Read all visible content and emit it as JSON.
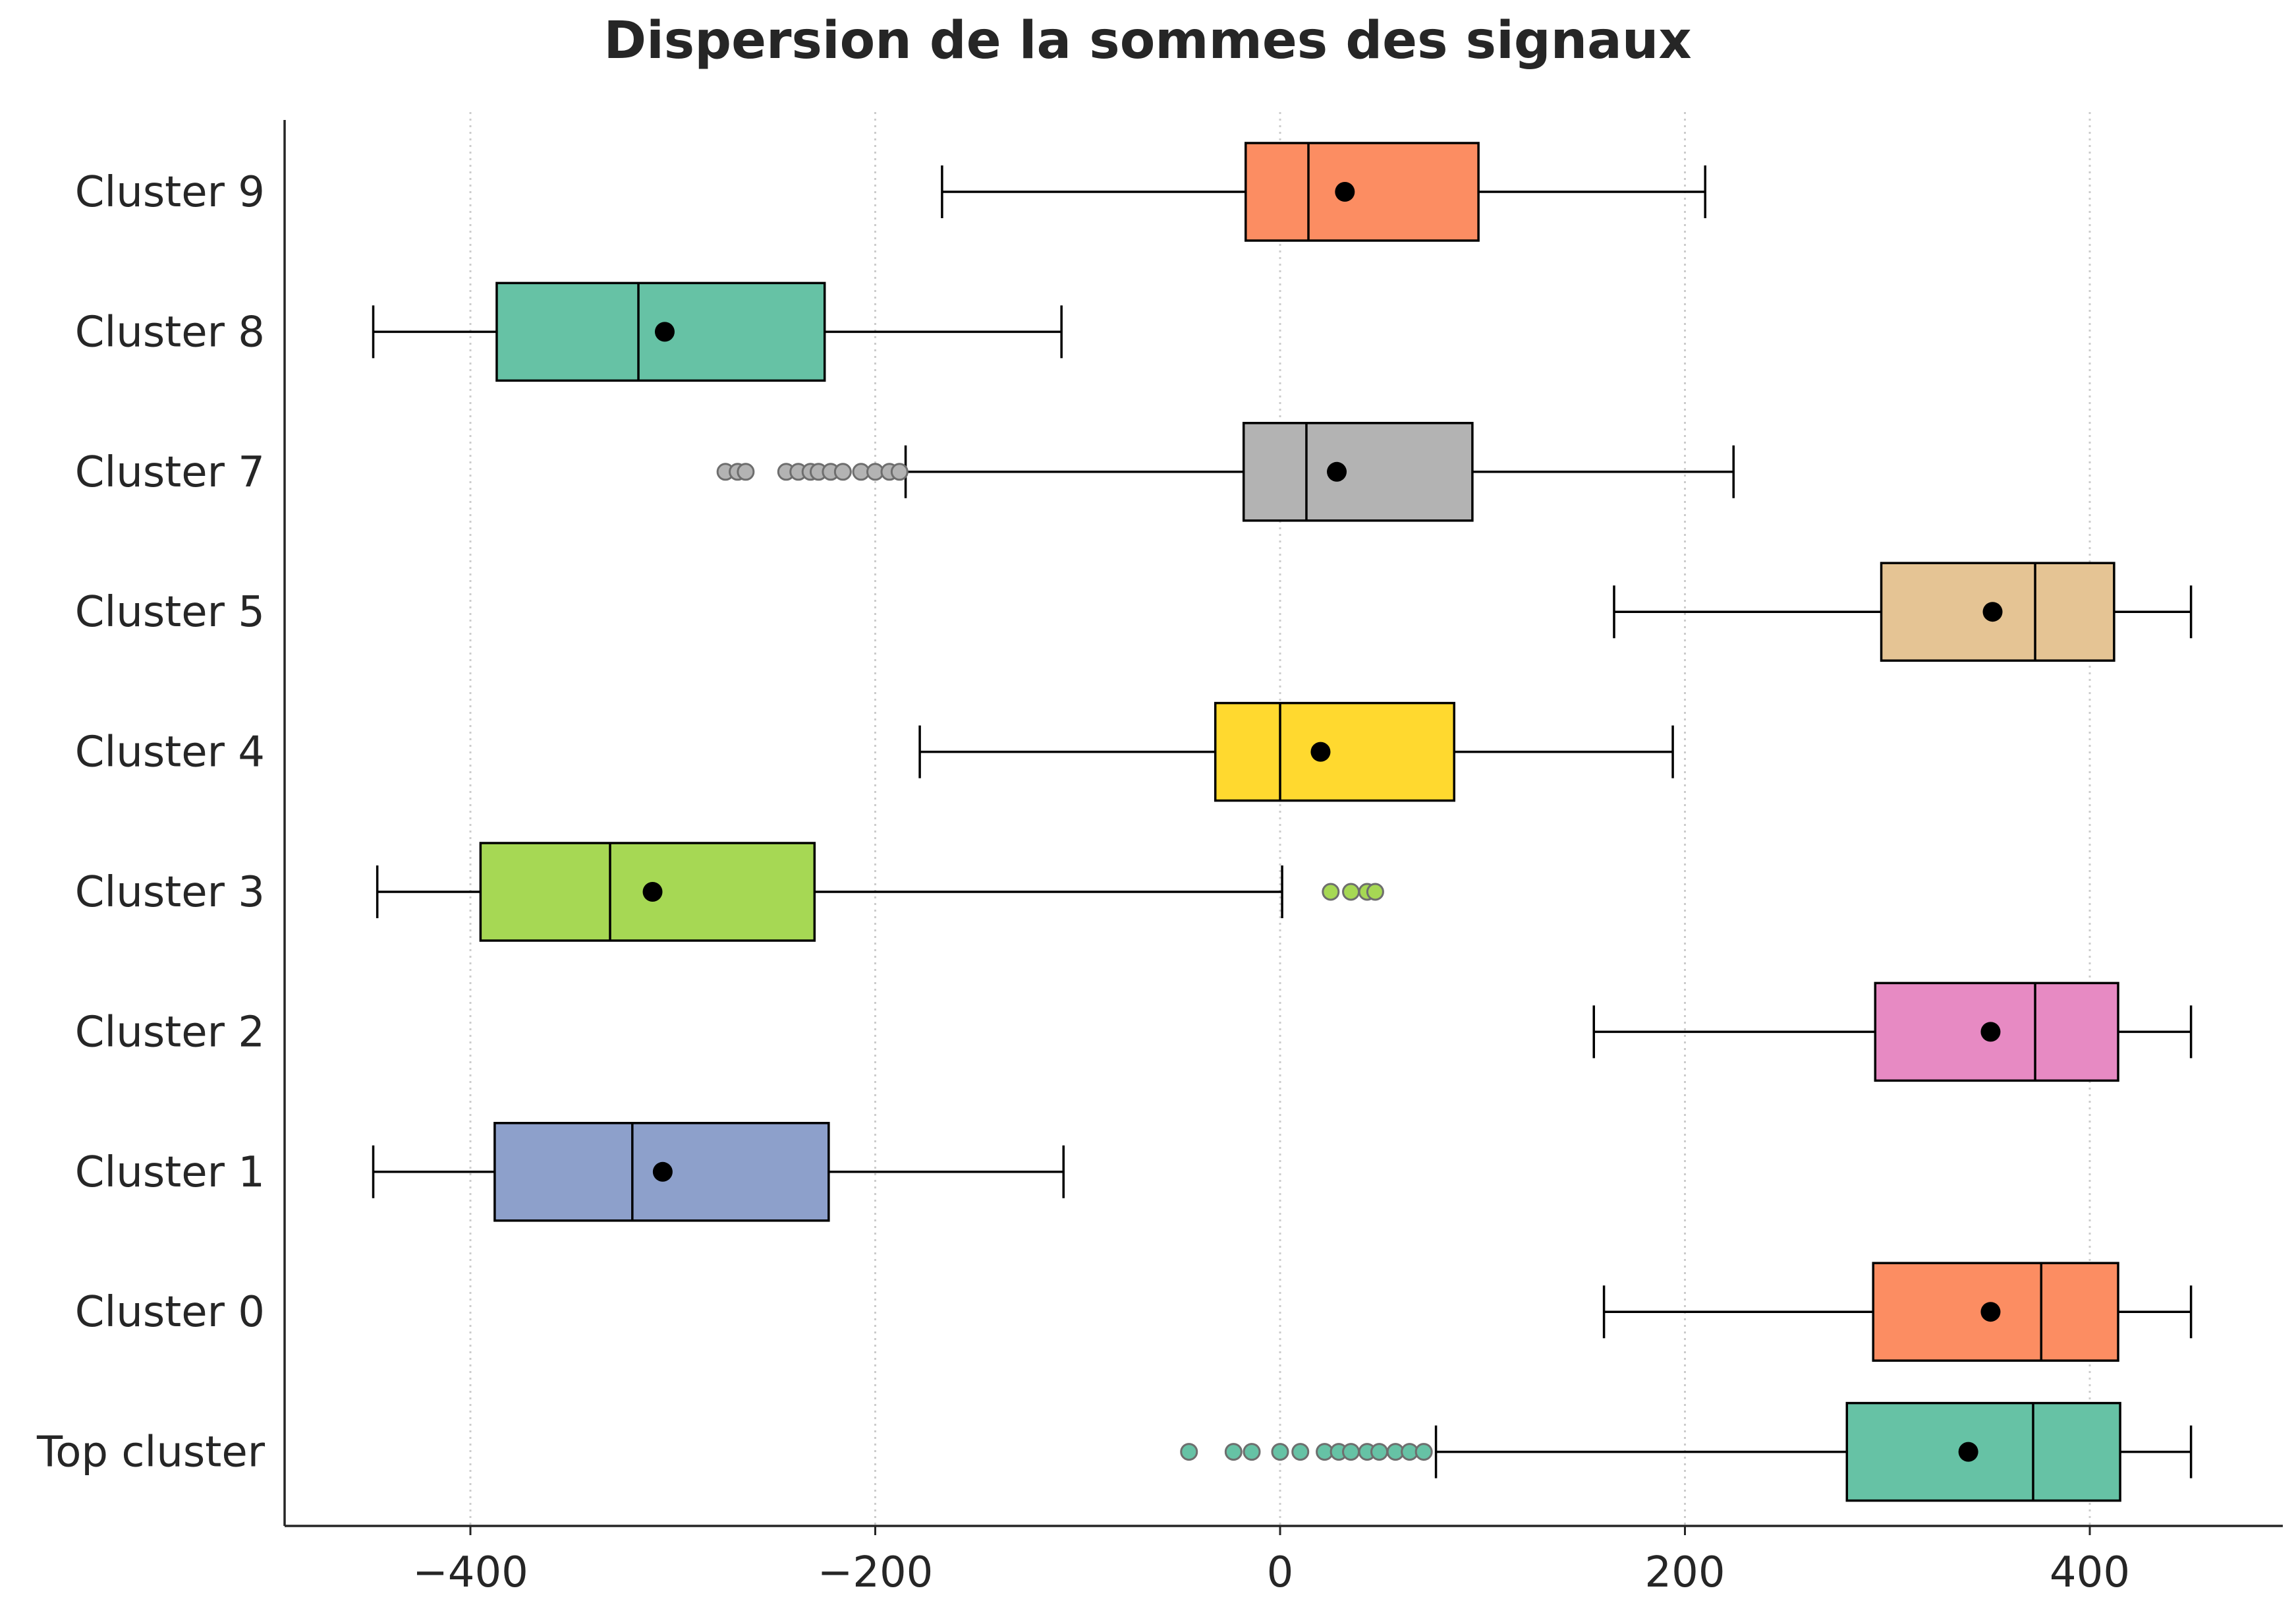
{
  "chart_data": {
    "type": "boxplot",
    "orientation": "horizontal",
    "title": "Dispersion de la sommes des signaux",
    "xlabel": "",
    "ylabel": "",
    "xlim": [
      -493,
      493
    ],
    "xticks": [
      -400,
      -200,
      0,
      200,
      400
    ],
    "xtick_labels": [
      "−400",
      "−200",
      "0",
      "200",
      "400"
    ],
    "grid": {
      "x": true,
      "y": false,
      "style": "dotted"
    },
    "categories": [
      "Cluster 9",
      "Cluster 8",
      "Cluster 7",
      "Cluster 5",
      "Cluster 4",
      "Cluster 3",
      "Cluster 2",
      "Cluster 1",
      "Cluster 0",
      "Top cluster"
    ],
    "boxes": [
      {
        "label": "Cluster 9",
        "color": "#fc8d62",
        "whisker_low": -167,
        "q1": -17,
        "median": 14,
        "q3": 98,
        "whisker_high": 210,
        "mean": 32,
        "outliers": []
      },
      {
        "label": "Cluster 8",
        "color": "#66c2a5",
        "whisker_low": -448,
        "q1": -387,
        "median": -317,
        "q3": -225,
        "whisker_high": -108,
        "mean": -304,
        "outliers": []
      },
      {
        "label": "Cluster 7",
        "color": "#b3b3b3",
        "whisker_low": -185,
        "q1": -18,
        "median": 13,
        "q3": 95,
        "whisker_high": 224,
        "mean": 28,
        "outliers": [
          -274,
          -268,
          -264,
          -244,
          -238,
          -232,
          -228,
          -222,
          -216,
          -207,
          -200,
          -193,
          -188
        ]
      },
      {
        "label": "Cluster 5",
        "color": "#e5c494",
        "whisker_low": 165,
        "q1": 297,
        "median": 373,
        "q3": 412,
        "whisker_high": 450,
        "mean": 352,
        "outliers": []
      },
      {
        "label": "Cluster 4",
        "color": "#ffd92f",
        "whisker_low": -178,
        "q1": -32,
        "median": 0,
        "q3": 86,
        "whisker_high": 194,
        "mean": 20,
        "outliers": []
      },
      {
        "label": "Cluster 3",
        "color": "#a6d854",
        "whisker_low": -446,
        "q1": -395,
        "median": -331,
        "q3": -230,
        "whisker_high": 1,
        "mean": -310,
        "outliers": [
          25,
          35,
          43,
          47
        ]
      },
      {
        "label": "Cluster 2",
        "color": "#e78ac3",
        "whisker_low": 155,
        "q1": 294,
        "median": 373,
        "q3": 414,
        "whisker_high": 450,
        "mean": 351,
        "outliers": []
      },
      {
        "label": "Cluster 1",
        "color": "#8da0cb",
        "whisker_low": -448,
        "q1": -388,
        "median": -320,
        "q3": -223,
        "whisker_high": -107,
        "mean": -305,
        "outliers": []
      },
      {
        "label": "Cluster 0",
        "color": "#fc8d62",
        "whisker_low": 160,
        "q1": 293,
        "median": 376,
        "q3": 414,
        "whisker_high": 450,
        "mean": 351,
        "outliers": []
      },
      {
        "label": "Top cluster",
        "color": "#66c2a5",
        "whisker_low": 77,
        "q1": 280,
        "median": 372,
        "q3": 415,
        "whisker_high": 450,
        "mean": 340,
        "outliers": [
          -45,
          -23,
          -14,
          0,
          10,
          22,
          29,
          35,
          43,
          49,
          57,
          64,
          71
        ]
      }
    ]
  }
}
